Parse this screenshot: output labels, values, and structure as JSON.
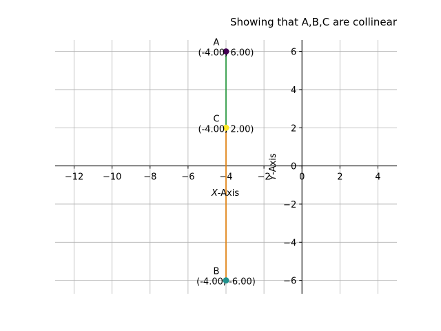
{
  "chart_data": {
    "type": "scatter",
    "title": "Showing that A,B,C are collinear",
    "xlabel_var": "X",
    "xlabel_rest": "-Axis",
    "ylabel_var": "Y",
    "ylabel_rest": "-Axis",
    "xlim": [
      -13,
      5
    ],
    "ylim": [
      -6.7,
      6.6
    ],
    "grid": true,
    "x_ticks": [
      -12,
      -10,
      -8,
      -6,
      -4,
      -2,
      0,
      2,
      4
    ],
    "x_tick_labels": [
      "−12",
      "−10",
      "−8",
      "−6",
      "−4",
      "−2",
      "0",
      "2",
      "4"
    ],
    "y_ticks": [
      -6,
      -4,
      -2,
      0,
      2,
      4,
      6
    ],
    "y_tick_labels": [
      "−6",
      "−4",
      "−2",
      "0",
      "2",
      "4",
      "6"
    ],
    "points": [
      {
        "name": "A",
        "coord": "(-4.00, 6.00)",
        "x": -4,
        "y": 6,
        "color": "#440154"
      },
      {
        "name": "B",
        "coord": "(-4.00, -6.00)",
        "x": -4,
        "y": -6,
        "color": "#21918c"
      },
      {
        "name": "C",
        "coord": "(-4.00, 2.00)",
        "x": -4,
        "y": 2,
        "color": "#fde725"
      }
    ],
    "segments": [
      {
        "from": "A",
        "to": "C",
        "color": "#1f77b4"
      },
      {
        "from": "A",
        "to": "B",
        "color": "#2ca02c"
      },
      {
        "from": "C",
        "to": "B",
        "color": "#ff7f0e"
      }
    ]
  }
}
